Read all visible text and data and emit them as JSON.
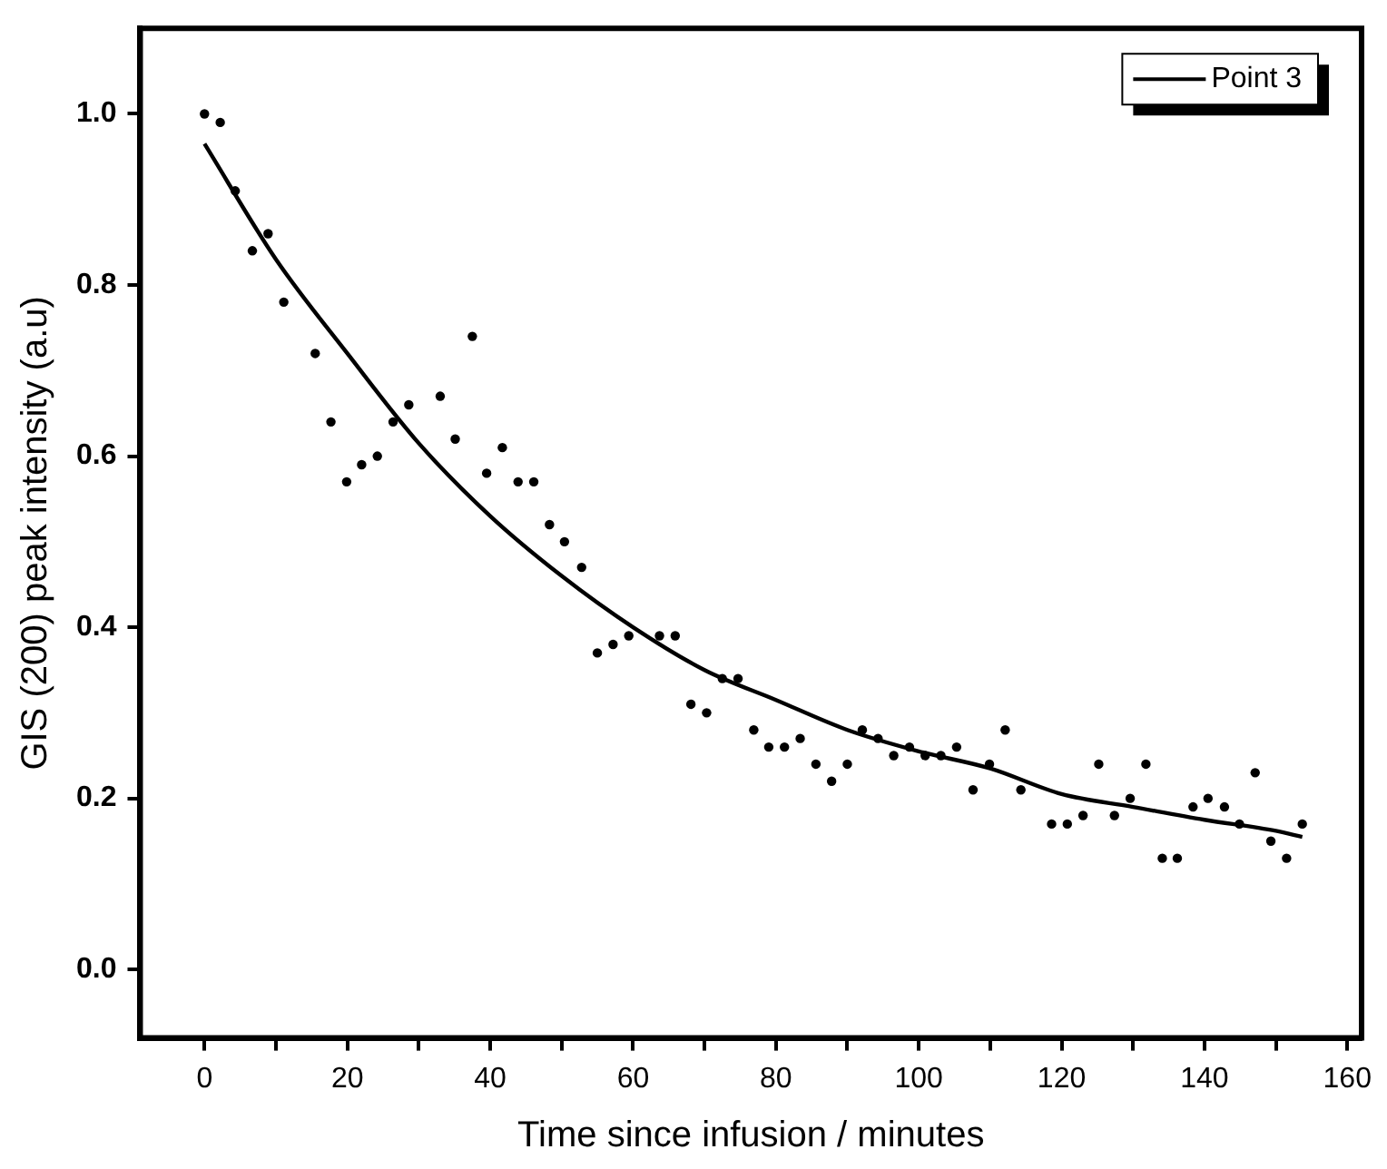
{
  "chart_data": {
    "type": "scatter",
    "xlabel": "Time since infusion / minutes",
    "ylabel": "GIS (200) peak intensity (a.u)",
    "xlim": [
      -9,
      162
    ],
    "ylim": [
      -0.08,
      1.1
    ],
    "xticks": [
      0,
      {
        "value": 10,
        "label": null
      },
      20,
      {
        "value": 30,
        "label": null
      },
      40,
      {
        "value": 50,
        "label": null
      },
      60,
      {
        "value": 70,
        "label": null
      },
      80,
      {
        "value": 90,
        "label": null
      },
      100,
      {
        "value": 110,
        "label": null
      },
      120,
      {
        "value": 130,
        "label": null
      },
      140,
      {
        "value": 150,
        "label": null
      },
      160
    ],
    "yticks": [
      {
        "value": 0,
        "label": "0.0"
      },
      {
        "value": 0.2,
        "label": "0.2"
      },
      {
        "value": 0.4,
        "label": "0.4"
      },
      {
        "value": 0.6,
        "label": "0.6"
      },
      {
        "value": 0.8,
        "label": "0.8"
      },
      {
        "value": 1,
        "label": "1.0"
      }
    ],
    "grid": false,
    "legend": "top right",
    "marker": "circle",
    "series": [
      {
        "color": "#000000",
        "x": [
          0,
          2.2,
          4.3,
          6.7,
          8.9,
          11.1,
          15.5,
          17.7,
          19.9,
          22.0,
          24.2,
          26.4,
          28.6,
          33.0,
          35.1,
          37.5,
          39.5,
          41.7,
          43.9,
          46.1,
          48.3,
          50.4,
          52.8,
          55.0,
          57.2,
          59.4,
          63.7,
          65.9,
          68.1,
          70.3,
          72.5,
          74.7,
          76.9,
          79.0,
          81.2,
          83.4,
          85.6,
          87.8,
          90.0,
          92.1,
          94.3,
          96.5,
          98.7,
          100.9,
          103.1,
          105.3,
          107.6,
          109.9,
          112.1,
          114.3,
          118.6,
          120.8,
          123.0,
          125.2,
          127.4,
          129.6,
          131.8,
          134.1,
          136.2,
          138.4,
          140.5,
          142.8,
          144.9,
          147.1,
          149.3,
          151.5,
          153.7
        ],
        "values": [
          1.0,
          0.99,
          0.91,
          0.84,
          0.86,
          0.78,
          0.72,
          0.64,
          0.57,
          0.59,
          0.6,
          0.64,
          0.66,
          0.67,
          0.62,
          0.74,
          0.58,
          0.61,
          0.57,
          0.57,
          0.52,
          0.5,
          0.47,
          0.37,
          0.38,
          0.39,
          0.39,
          0.39,
          0.31,
          0.3,
          0.34,
          0.34,
          0.28,
          0.26,
          0.26,
          0.27,
          0.24,
          0.22,
          0.24,
          0.28,
          0.27,
          0.25,
          0.26,
          0.25,
          0.25,
          0.26,
          0.21,
          0.24,
          0.28,
          0.21,
          0.17,
          0.17,
          0.18,
          0.24,
          0.18,
          0.2,
          0.24,
          0.13,
          0.13,
          0.19,
          0.2,
          0.19,
          0.17,
          0.23,
          0.15,
          0.13,
          0.17
        ]
      },
      {
        "type": "line",
        "name": "Point 3",
        "color": "#000000",
        "marker": "none",
        "line_style": "solid",
        "x": [
          0,
          10,
          20,
          30,
          40,
          50,
          60,
          70,
          80,
          90,
          100,
          110,
          120,
          130,
          140,
          150,
          153.7
        ],
        "values": [
          0.965,
          0.83,
          0.72,
          0.615,
          0.53,
          0.46,
          0.4,
          0.35,
          0.315,
          0.28,
          0.255,
          0.235,
          0.205,
          0.19,
          0.175,
          0.162,
          0.155
        ]
      }
    ]
  }
}
